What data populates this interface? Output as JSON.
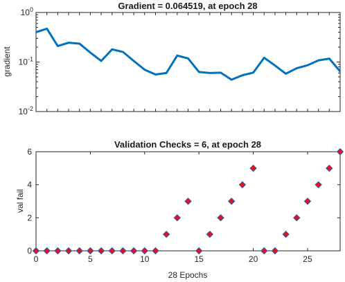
{
  "chart_data": [
    {
      "type": "line",
      "title": "Gradient = 0.064519, at epoch 28",
      "ylabel": "gradient",
      "xlabel": "",
      "yscale": "log",
      "xlim": [
        0,
        28
      ],
      "ylim": [
        0.01,
        1
      ],
      "yticks": [
        {
          "value": 1,
          "base": "10",
          "exp": "0"
        },
        {
          "value": 0.1,
          "base": "10",
          "exp": "-1"
        },
        {
          "value": 0.01,
          "base": "10",
          "exp": "-2"
        }
      ],
      "color": "#0072bd",
      "x": [
        0,
        1,
        2,
        3,
        4,
        5,
        6,
        7,
        8,
        9,
        10,
        11,
        12,
        13,
        14,
        15,
        16,
        17,
        18,
        19,
        20,
        21,
        22,
        23,
        24,
        25,
        26,
        27,
        28
      ],
      "y": [
        0.4,
        0.47,
        0.21,
        0.245,
        0.235,
        0.155,
        0.105,
        0.18,
        0.16,
        0.105,
        0.07,
        0.056,
        0.06,
        0.135,
        0.118,
        0.063,
        0.06,
        0.061,
        0.044,
        0.054,
        0.061,
        0.122,
        0.085,
        0.058,
        0.075,
        0.086,
        0.108,
        0.117,
        0.064519
      ]
    },
    {
      "type": "scatter",
      "title": "Validation Checks = 6, at epoch 28",
      "ylabel": "val fail",
      "xlabel": "28 Epochs",
      "xlim": [
        0,
        28
      ],
      "ylim": [
        0,
        6
      ],
      "xticks": [
        0,
        5,
        10,
        15,
        20,
        25
      ],
      "yticks": [
        0,
        2,
        4,
        6
      ],
      "marker_fill": "#e8101e",
      "marker_edge": "#1f5fa8",
      "x": [
        0,
        1,
        2,
        3,
        4,
        5,
        6,
        7,
        8,
        9,
        10,
        11,
        12,
        13,
        14,
        15,
        16,
        17,
        18,
        19,
        20,
        21,
        22,
        23,
        24,
        25,
        26,
        27,
        28
      ],
      "y": [
        0,
        0,
        0,
        0,
        0,
        0,
        0,
        0,
        0,
        0,
        0,
        0,
        1,
        2,
        3,
        0,
        1,
        2,
        3,
        4,
        5,
        0,
        0,
        1,
        2,
        3,
        4,
        5,
        6
      ]
    }
  ]
}
